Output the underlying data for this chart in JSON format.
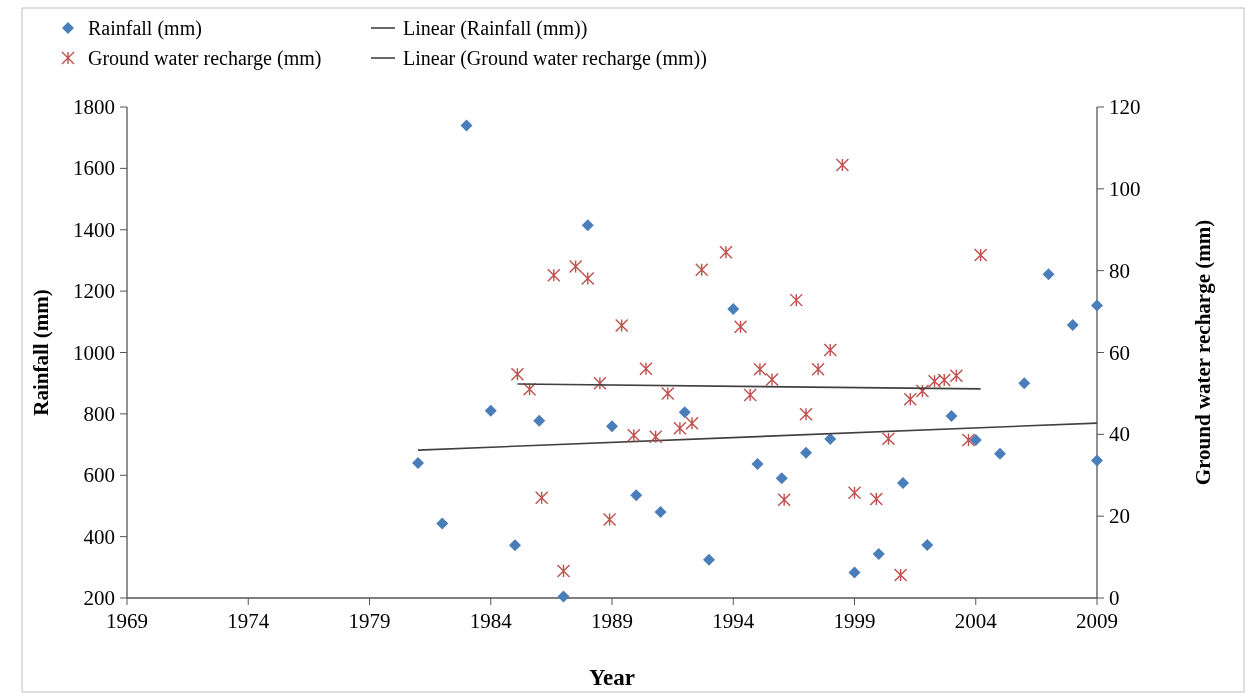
{
  "chart_data": {
    "type": "scatter",
    "xlabel": "Year",
    "ylabel": "Rainfall (mm)",
    "y2label": "Ground water recharge (mm)",
    "xlim": [
      1969,
      2009
    ],
    "xticks": [
      1969,
      1974,
      1979,
      1984,
      1989,
      1994,
      1999,
      2004,
      2009
    ],
    "ylim": [
      200,
      1800
    ],
    "yticks": [
      200,
      400,
      600,
      800,
      1000,
      1200,
      1400,
      1600,
      1800
    ],
    "y2lim": [
      0,
      120
    ],
    "y2ticks": [
      0,
      20,
      40,
      60,
      80,
      100,
      120
    ],
    "grid": false,
    "legend": "top left",
    "series": [
      {
        "name": "Rainfall (mm)",
        "marker": "diamond",
        "color": "#4a7ebb",
        "x": [
          1981,
          1982,
          1983,
          1984,
          1985,
          1986,
          1987,
          1988,
          1989,
          1990,
          1991,
          1992,
          1993,
          1994,
          1995,
          1996,
          1997,
          1998,
          1999,
          2000,
          2001,
          2002,
          2003,
          2004,
          2005,
          2006,
          2007,
          2008,
          2009,
          2009
        ],
        "values": [
          640,
          443,
          1740,
          810,
          372,
          778,
          205,
          1415,
          760,
          535,
          480,
          805,
          325,
          1142,
          637,
          590,
          673,
          718,
          283,
          343,
          575,
          373,
          793,
          715,
          670,
          900,
          1255,
          1090,
          1153,
          648
        ]
      },
      {
        "name": "Linear (Rainfall (mm))",
        "type": "line",
        "marker": "none",
        "color": "#404040",
        "x": [
          1981,
          2009
        ],
        "values": [
          682,
          770
        ]
      },
      {
        "name": "Ground water recharge (mm)",
        "marker": "cross",
        "axis": "y2",
        "color": "#c0504d",
        "x": [
          1985.1,
          1985.6,
          1986.1,
          1986.6,
          1987.0,
          1987.5,
          1988.0,
          1988.5,
          1988.9,
          1989.4,
          1989.9,
          1990.4,
          1990.8,
          1991.3,
          1991.8,
          1992.3,
          1992.7,
          1993.7,
          1994.3,
          1994.7,
          1995.1,
          1995.6,
          1996.1,
          1996.6,
          1997.0,
          1997.5,
          1998.0,
          1998.5,
          1999.0,
          1999.9,
          2000.4,
          2000.9,
          2001.3,
          2001.8,
          2002.3,
          2002.7,
          2003.2,
          2003.7,
          2004.2
        ],
        "values": [
          54.7,
          51,
          24.5,
          78.9,
          6.6,
          81,
          78.1,
          52.5,
          19.2,
          66.6,
          39.8,
          56,
          39.4,
          50,
          41.5,
          42.7,
          80.2,
          84.5,
          66.3,
          49.6,
          55.9,
          53.4,
          24,
          72.8,
          44.9,
          55.9,
          60.6,
          105.8,
          25.7,
          24.2,
          38.9,
          5.6,
          48.6,
          50.6,
          53,
          53.3,
          54.3,
          38.6,
          83.8
        ]
      },
      {
        "name": "Linear (Ground water recharge (mm))",
        "type": "line",
        "marker": "none",
        "axis": "y2",
        "color": "#404040",
        "x": [
          1985.1,
          2004.2
        ],
        "values": [
          52.3,
          51.1
        ]
      }
    ]
  }
}
